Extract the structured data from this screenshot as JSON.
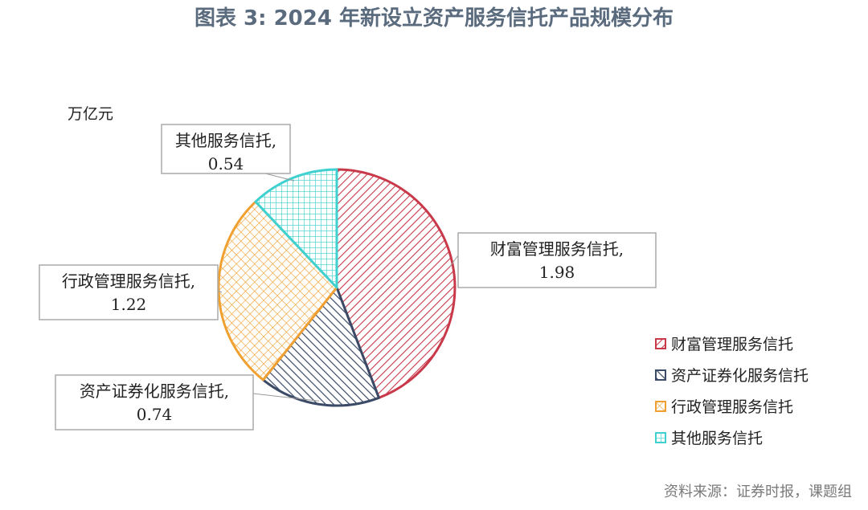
{
  "page": {
    "title": "图表 3: 2024 年新设立资产服务信托产品规模分布",
    "source": "资料来源：证券时报，课题组"
  },
  "chart_data": {
    "type": "pie",
    "unit_label": "万亿元",
    "slices": [
      {
        "name": "财富管理服务信托",
        "value": 1.98,
        "value_label": "1.98",
        "color": "#c8394a"
      },
      {
        "name": "资产证券化服务信托",
        "value": 0.74,
        "value_label": "0.74",
        "color": "#3b4a66"
      },
      {
        "name": "行政管理服务信托",
        "value": 1.22,
        "value_label": "1.22",
        "color": "#f0a030"
      },
      {
        "name": "其他服务信托",
        "value": 0.54,
        "value_label": "0.54",
        "color": "#3fd0d0"
      }
    ],
    "legend_position": "right"
  }
}
